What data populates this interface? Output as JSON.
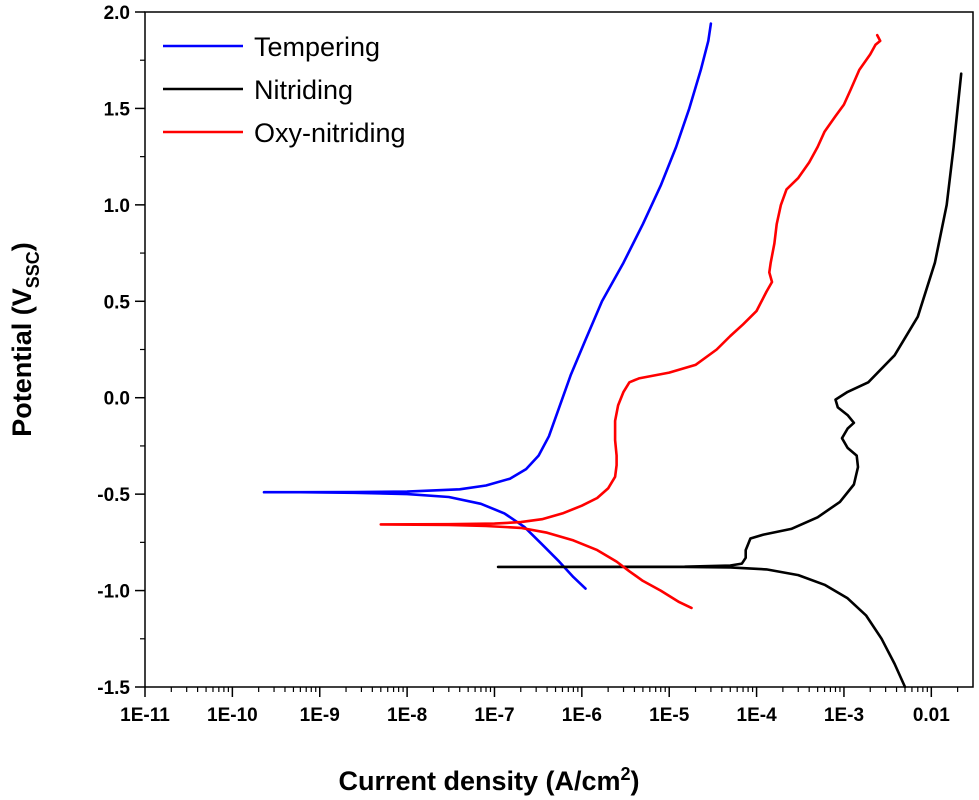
{
  "chart_data": {
    "type": "line",
    "x_scale": "log",
    "xlabel_main": "Current density (A/cm",
    "xlabel_sup": "2",
    "xlabel_close": ")",
    "ylabel_main": "Potential (V",
    "ylabel_sub": "SSC",
    "ylabel_close": ")",
    "xlim": [
      1e-11,
      0.03
    ],
    "ylim": [
      -1.5,
      2.0
    ],
    "x_ticks": [
      {
        "value": 1e-11,
        "label": "1E-11"
      },
      {
        "value": 1e-10,
        "label": "1E-10"
      },
      {
        "value": 1e-09,
        "label": "1E-9"
      },
      {
        "value": 1e-08,
        "label": "1E-8"
      },
      {
        "value": 1e-07,
        "label": "1E-7"
      },
      {
        "value": 1e-06,
        "label": "1E-6"
      },
      {
        "value": 1e-05,
        "label": "1E-5"
      },
      {
        "value": 0.0001,
        "label": "1E-4"
      },
      {
        "value": 0.001,
        "label": "1E-3"
      },
      {
        "value": 0.01,
        "label": "0.01"
      }
    ],
    "y_ticks": [
      {
        "value": 2.0,
        "label": "2.0"
      },
      {
        "value": 1.5,
        "label": "1.5"
      },
      {
        "value": 1.0,
        "label": "1.0"
      },
      {
        "value": 0.5,
        "label": "0.5"
      },
      {
        "value": 0.0,
        "label": "0.0"
      },
      {
        "value": -0.5,
        "label": "-0.5"
      },
      {
        "value": -1.0,
        "label": "-1.0"
      },
      {
        "value": -1.5,
        "label": "-1.5"
      }
    ],
    "grid": false,
    "legend_position": "top-left",
    "series": [
      {
        "name": "Tempering",
        "color": "#0000FF",
        "points": [
          [
            1.1e-06,
            -0.99
          ],
          [
            8e-07,
            -0.93
          ],
          [
            5.5e-07,
            -0.85
          ],
          [
            3.5e-07,
            -0.76
          ],
          [
            2.2e-07,
            -0.67
          ],
          [
            1.3e-07,
            -0.6
          ],
          [
            7e-08,
            -0.55
          ],
          [
            3e-08,
            -0.515
          ],
          [
            1e-08,
            -0.5
          ],
          [
            2.5e-09,
            -0.493
          ],
          [
            6e-10,
            -0.49
          ],
          [
            2.3e-10,
            -0.49
          ],
          [
            6e-10,
            -0.49
          ],
          [
            2.5e-09,
            -0.489
          ],
          [
            1e-08,
            -0.487
          ],
          [
            4e-08,
            -0.475
          ],
          [
            8e-08,
            -0.455
          ],
          [
            1.5e-07,
            -0.42
          ],
          [
            2.3e-07,
            -0.37
          ],
          [
            3.2e-07,
            -0.3
          ],
          [
            4.2e-07,
            -0.2
          ],
          [
            5.5e-07,
            -0.05
          ],
          [
            7.5e-07,
            0.12
          ],
          [
            1.1e-06,
            0.3
          ],
          [
            1.7e-06,
            0.5
          ],
          [
            3e-06,
            0.7
          ],
          [
            5e-06,
            0.9
          ],
          [
            8e-06,
            1.1
          ],
          [
            1.2e-05,
            1.3
          ],
          [
            1.7e-05,
            1.5
          ],
          [
            2.3e-05,
            1.7
          ],
          [
            2.8e-05,
            1.85
          ],
          [
            3e-05,
            1.94
          ]
        ]
      },
      {
        "name": "Nitriding",
        "color": "#000000",
        "points": [
          [
            0.005,
            -1.5
          ],
          [
            0.0038,
            -1.38
          ],
          [
            0.0027,
            -1.25
          ],
          [
            0.0018,
            -1.13
          ],
          [
            0.0011,
            -1.04
          ],
          [
            0.0006,
            -0.97
          ],
          [
            0.0003,
            -0.92
          ],
          [
            0.00013,
            -0.89
          ],
          [
            5e-05,
            -0.88
          ],
          [
            1.5e-05,
            -0.878
          ],
          [
            1.1e-07,
            -0.877
          ],
          [
            1.5e-05,
            -0.876
          ],
          [
            5e-05,
            -0.87
          ],
          [
            6.8e-05,
            -0.86
          ],
          [
            7.5e-05,
            -0.83
          ],
          [
            7.5e-05,
            -0.79
          ],
          [
            8e-05,
            -0.76
          ],
          [
            8.5e-05,
            -0.73
          ],
          [
            0.00012,
            -0.71
          ],
          [
            0.00025,
            -0.68
          ],
          [
            0.0005,
            -0.62
          ],
          [
            0.0009,
            -0.54
          ],
          [
            0.0013,
            -0.45
          ],
          [
            0.00145,
            -0.36
          ],
          [
            0.0014,
            -0.3
          ],
          [
            0.0011,
            -0.26
          ],
          [
            0.00095,
            -0.21
          ],
          [
            0.0011,
            -0.16
          ],
          [
            0.0013,
            -0.13
          ],
          [
            0.0011,
            -0.09
          ],
          [
            0.00085,
            -0.05
          ],
          [
            0.0008,
            -0.01
          ],
          [
            0.0011,
            0.03
          ],
          [
            0.0019,
            0.08
          ],
          [
            0.0038,
            0.22
          ],
          [
            0.007,
            0.42
          ],
          [
            0.011,
            0.7
          ],
          [
            0.015,
            1.0
          ],
          [
            0.018,
            1.3
          ],
          [
            0.02,
            1.5
          ],
          [
            0.022,
            1.68
          ]
        ]
      },
      {
        "name": "Oxy-nitriding",
        "color": "#FF0000",
        "points": [
          [
            1.8e-05,
            -1.09
          ],
          [
            1.3e-05,
            -1.06
          ],
          [
            8e-06,
            -1.0
          ],
          [
            5e-06,
            -0.95
          ],
          [
            3.5e-06,
            -0.9
          ],
          [
            2.5e-06,
            -0.85
          ],
          [
            1.5e-06,
            -0.79
          ],
          [
            8e-07,
            -0.74
          ],
          [
            4e-07,
            -0.7
          ],
          [
            2e-07,
            -0.675
          ],
          [
            8e-08,
            -0.665
          ],
          [
            3e-08,
            -0.66
          ],
          [
            5e-09,
            -0.657
          ],
          [
            3e-08,
            -0.656
          ],
          [
            1e-07,
            -0.653
          ],
          [
            2e-07,
            -0.645
          ],
          [
            3.5e-07,
            -0.63
          ],
          [
            6e-07,
            -0.6
          ],
          [
            1e-06,
            -0.56
          ],
          [
            1.5e-06,
            -0.52
          ],
          [
            2e-06,
            -0.47
          ],
          [
            2.4e-06,
            -0.41
          ],
          [
            2.5e-06,
            -0.35
          ],
          [
            2.5e-06,
            -0.3
          ],
          [
            2.4e-06,
            -0.22
          ],
          [
            2.4e-06,
            -0.12
          ],
          [
            2.6e-06,
            -0.04
          ],
          [
            3e-06,
            0.03
          ],
          [
            3.5e-06,
            0.08
          ],
          [
            4.5e-06,
            0.1
          ],
          [
            1e-05,
            0.13
          ],
          [
            2e-05,
            0.17
          ],
          [
            3.5e-05,
            0.25
          ],
          [
            5e-05,
            0.32
          ],
          [
            7e-05,
            0.38
          ],
          [
            0.0001,
            0.45
          ],
          [
            0.00013,
            0.55
          ],
          [
            0.00015,
            0.6
          ],
          [
            0.00014,
            0.65
          ],
          [
            0.000145,
            0.7
          ],
          [
            0.00016,
            0.8
          ],
          [
            0.00017,
            0.9
          ],
          [
            0.00019,
            1.0
          ],
          [
            0.00022,
            1.08
          ],
          [
            0.0003,
            1.14
          ],
          [
            0.0004,
            1.22
          ],
          [
            0.0005,
            1.3
          ],
          [
            0.0006,
            1.38
          ],
          [
            0.0008,
            1.46
          ],
          [
            0.001,
            1.52
          ],
          [
            0.0012,
            1.6
          ],
          [
            0.0015,
            1.7
          ],
          [
            0.002,
            1.78
          ],
          [
            0.0023,
            1.83
          ],
          [
            0.0026,
            1.85
          ],
          [
            0.0024,
            1.88
          ]
        ]
      }
    ]
  }
}
